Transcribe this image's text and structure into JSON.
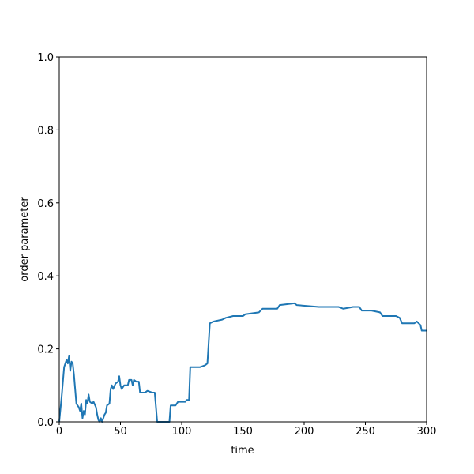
{
  "chart_data": {
    "type": "line",
    "xlabel": "time",
    "ylabel": "order parameter",
    "x": [
      0,
      2,
      4,
      6,
      7,
      8,
      9,
      10,
      11,
      12,
      13,
      14,
      16,
      17,
      18,
      19,
      20,
      21,
      22,
      23,
      24,
      25,
      27,
      28,
      30,
      31,
      32,
      33,
      34,
      35,
      37,
      38,
      39,
      41,
      42,
      43,
      44,
      46,
      48,
      49,
      50,
      51,
      53,
      56,
      57,
      59,
      60,
      61,
      63,
      65,
      66,
      70,
      72,
      76,
      78,
      80,
      90,
      91,
      95,
      97,
      103,
      104,
      106,
      107,
      115,
      119,
      121,
      123,
      126,
      133,
      136,
      142,
      150,
      152,
      163,
      166,
      178,
      180,
      192,
      194,
      212,
      220,
      228,
      232,
      240,
      245,
      247,
      255,
      262,
      264,
      275,
      278,
      280,
      290,
      292,
      295,
      296,
      300
    ],
    "series": [
      {
        "name": "order parameter",
        "color": "#1f77b4",
        "values": [
          0,
          0.07,
          0.15,
          0.17,
          0.16,
          0.18,
          0.14,
          0.165,
          0.16,
          0.13,
          0.09,
          0.05,
          0.04,
          0.03,
          0.05,
          0.01,
          0.03,
          0.02,
          0.06,
          0.05,
          0.075,
          0.055,
          0.05,
          0.055,
          0.04,
          0.02,
          0.005,
          0.0,
          0.01,
          0.0,
          0.02,
          0.025,
          0.045,
          0.05,
          0.09,
          0.1,
          0.09,
          0.105,
          0.11,
          0.125,
          0.1,
          0.09,
          0.1,
          0.1,
          0.115,
          0.115,
          0.1,
          0.115,
          0.11,
          0.11,
          0.08,
          0.08,
          0.085,
          0.08,
          0.08,
          0.0,
          0.0,
          0.045,
          0.045,
          0.055,
          0.055,
          0.06,
          0.06,
          0.15,
          0.15,
          0.155,
          0.16,
          0.27,
          0.275,
          0.28,
          0.285,
          0.29,
          0.29,
          0.295,
          0.3,
          0.31,
          0.31,
          0.32,
          0.325,
          0.32,
          0.315,
          0.315,
          0.315,
          0.31,
          0.315,
          0.315,
          0.305,
          0.305,
          0.3,
          0.29,
          0.29,
          0.285,
          0.27,
          0.27,
          0.275,
          0.265,
          0.25,
          0.25
        ]
      }
    ],
    "xlim": [
      0,
      300
    ],
    "xticks": [
      0,
      50,
      100,
      150,
      200,
      250,
      300
    ],
    "ylim": [
      0,
      1
    ],
    "yticks": [
      {
        "value": 0,
        "label": "0.0"
      },
      {
        "value": 0.2,
        "label": "0.2"
      },
      {
        "value": 0.4,
        "label": "0.4"
      },
      {
        "value": 0.6,
        "label": "0.6"
      },
      {
        "value": 0.8,
        "label": "0.8"
      },
      {
        "value": 1,
        "label": "1.0"
      }
    ]
  }
}
